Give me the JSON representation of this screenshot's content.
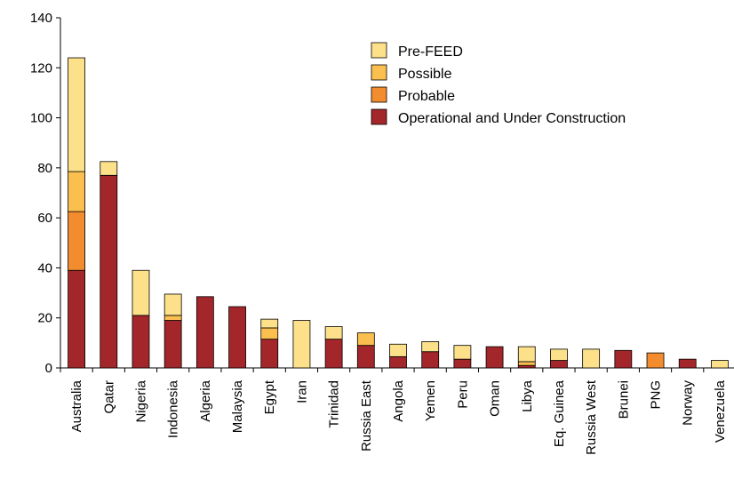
{
  "chart_data": {
    "type": "bar",
    "stacked": true,
    "title": "",
    "xlabel": "",
    "ylabel": "",
    "ylim": [
      0,
      140
    ],
    "yticks": [
      0,
      20,
      40,
      60,
      80,
      100,
      120,
      140
    ],
    "grid": false,
    "legend_position": "top-right",
    "categories": [
      "Australia",
      "Qatar",
      "Nigeria",
      "Indonesia",
      "Algeria",
      "Malaysia",
      "Egypt",
      "Iran",
      "Trinidad",
      "Russia East",
      "Angola",
      "Yemen",
      "Peru",
      "Oman",
      "Libya",
      "Eq. Guinea",
      "Russia West",
      "Brunei",
      "PNG",
      "Norway",
      "Venezuela"
    ],
    "series": [
      {
        "name": "Operational and Under Construction",
        "color": "#a3262a",
        "values": [
          39,
          77,
          21,
          19,
          28.5,
          24.5,
          11.5,
          0,
          11.5,
          9,
          4.5,
          6.5,
          3.5,
          8.5,
          1,
          3,
          0,
          7,
          0,
          3.5,
          0
        ]
      },
      {
        "name": "Probable",
        "color": "#f28c2e",
        "values": [
          23.5,
          0,
          0,
          0,
          0,
          0,
          0,
          0,
          0,
          0,
          0,
          0,
          0,
          0,
          0,
          0,
          0,
          0,
          6,
          0,
          0
        ]
      },
      {
        "name": "Possible",
        "color": "#fbbf50",
        "values": [
          16,
          0,
          0,
          2,
          0,
          0,
          4.5,
          0,
          0,
          5,
          0,
          0,
          0,
          0,
          1.5,
          0,
          0,
          0,
          0,
          0,
          0
        ]
      },
      {
        "name": "Pre-FEED",
        "color": "#fde08a",
        "values": [
          45.5,
          5.5,
          18,
          8.5,
          0,
          0,
          3.5,
          19,
          5,
          0,
          5,
          4,
          5.5,
          0,
          6,
          4.5,
          7.5,
          0,
          0,
          0,
          3
        ]
      }
    ],
    "legend_order": [
      "Pre-FEED",
      "Possible",
      "Probable",
      "Operational and Under Construction"
    ]
  }
}
